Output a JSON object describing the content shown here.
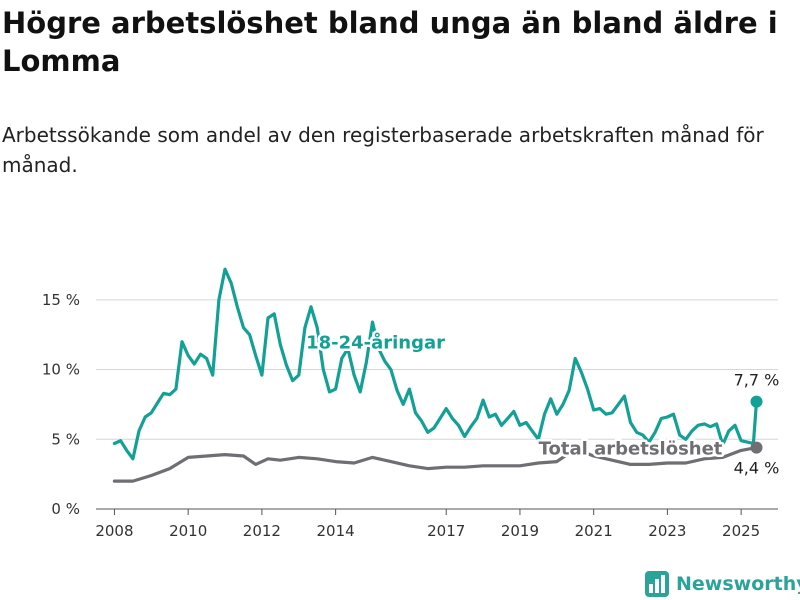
{
  "title": "Högre arbetslöshet bland unga än bland äldre i Lomma",
  "subtitle": "Arbetssökande som andel av den registerbaserade arbetskraften månad för månad.",
  "brand": {
    "name": "Newsworthy",
    "color": "#2aa39a",
    "icon": "bar-chart-logo-icon"
  },
  "chart_data": {
    "type": "line",
    "title": "Högre arbetslöshet bland unga än bland äldre i Lomma",
    "subtitle": "Arbetssökande som andel av den registerbaserade arbetskraften månad för månad.",
    "xlabel": "",
    "ylabel": "",
    "x_ticks": [
      "2008",
      "2010",
      "2012",
      "2014",
      "2017",
      "2019",
      "2021",
      "2023",
      "2025"
    ],
    "y_ticks": [
      "0 %",
      "5 %",
      "10 %",
      "15 %"
    ],
    "ylim": [
      0,
      18
    ],
    "xlim": [
      "2007-07",
      "2026-01"
    ],
    "grid": true,
    "series": [
      {
        "name": "18-24-åringar",
        "color": "#13a096",
        "end_label": "7,7 %",
        "points": [
          [
            "2008-01",
            4.7
          ],
          [
            "2008-03",
            4.9
          ],
          [
            "2008-05",
            4.2
          ],
          [
            "2008-07",
            3.6
          ],
          [
            "2008-09",
            5.6
          ],
          [
            "2008-11",
            6.6
          ],
          [
            "2009-01",
            6.9
          ],
          [
            "2009-03",
            7.6
          ],
          [
            "2009-05",
            8.3
          ],
          [
            "2009-07",
            8.2
          ],
          [
            "2009-09",
            8.6
          ],
          [
            "2009-11",
            12.0
          ],
          [
            "2010-01",
            11.0
          ],
          [
            "2010-03",
            10.4
          ],
          [
            "2010-05",
            11.1
          ],
          [
            "2010-07",
            10.8
          ],
          [
            "2010-09",
            9.6
          ],
          [
            "2010-11",
            15.0
          ],
          [
            "2011-01",
            17.2
          ],
          [
            "2011-03",
            16.2
          ],
          [
            "2011-05",
            14.5
          ],
          [
            "2011-07",
            13.0
          ],
          [
            "2011-09",
            12.5
          ],
          [
            "2011-11",
            11.0
          ],
          [
            "2012-01",
            9.6
          ],
          [
            "2012-03",
            13.7
          ],
          [
            "2012-05",
            14.0
          ],
          [
            "2012-07",
            11.8
          ],
          [
            "2012-09",
            10.3
          ],
          [
            "2012-11",
            9.2
          ],
          [
            "2013-01",
            9.6
          ],
          [
            "2013-03",
            13.0
          ],
          [
            "2013-05",
            14.5
          ],
          [
            "2013-07",
            13.0
          ],
          [
            "2013-09",
            10.0
          ],
          [
            "2013-11",
            8.4
          ],
          [
            "2014-01",
            8.6
          ],
          [
            "2014-03",
            10.8
          ],
          [
            "2014-05",
            11.5
          ],
          [
            "2014-07",
            9.6
          ],
          [
            "2014-09",
            8.4
          ],
          [
            "2014-11",
            10.5
          ],
          [
            "2015-01",
            13.4
          ],
          [
            "2015-03",
            11.5
          ],
          [
            "2015-05",
            10.6
          ],
          [
            "2015-07",
            10.0
          ],
          [
            "2015-09",
            8.5
          ],
          [
            "2015-11",
            7.5
          ],
          [
            "2016-01",
            8.6
          ],
          [
            "2016-03",
            6.9
          ],
          [
            "2016-05",
            6.3
          ],
          [
            "2016-07",
            5.5
          ],
          [
            "2016-09",
            5.8
          ],
          [
            "2016-11",
            6.5
          ],
          [
            "2017-01",
            7.2
          ],
          [
            "2017-03",
            6.5
          ],
          [
            "2017-05",
            6.0
          ],
          [
            "2017-07",
            5.2
          ],
          [
            "2017-09",
            5.9
          ],
          [
            "2017-11",
            6.5
          ],
          [
            "2018-01",
            7.8
          ],
          [
            "2018-03",
            6.6
          ],
          [
            "2018-05",
            6.8
          ],
          [
            "2018-07",
            6.0
          ],
          [
            "2018-09",
            6.5
          ],
          [
            "2018-11",
            7.0
          ],
          [
            "2019-01",
            6.0
          ],
          [
            "2019-03",
            6.2
          ],
          [
            "2019-05",
            5.6
          ],
          [
            "2019-07",
            5.0
          ],
          [
            "2019-09",
            6.8
          ],
          [
            "2019-11",
            7.9
          ],
          [
            "2020-01",
            6.8
          ],
          [
            "2020-03",
            7.5
          ],
          [
            "2020-05",
            8.5
          ],
          [
            "2020-07",
            10.8
          ],
          [
            "2020-09",
            9.8
          ],
          [
            "2020-11",
            8.6
          ],
          [
            "2021-01",
            7.1
          ],
          [
            "2021-03",
            7.2
          ],
          [
            "2021-05",
            6.8
          ],
          [
            "2021-07",
            6.9
          ],
          [
            "2021-09",
            7.5
          ],
          [
            "2021-11",
            8.1
          ],
          [
            "2022-01",
            6.2
          ],
          [
            "2022-03",
            5.5
          ],
          [
            "2022-05",
            5.3
          ],
          [
            "2022-07",
            4.8
          ],
          [
            "2022-09",
            5.5
          ],
          [
            "2022-11",
            6.5
          ],
          [
            "2023-01",
            6.6
          ],
          [
            "2023-03",
            6.8
          ],
          [
            "2023-05",
            5.3
          ],
          [
            "2023-07",
            5.0
          ],
          [
            "2023-09",
            5.6
          ],
          [
            "2023-11",
            6.0
          ],
          [
            "2024-01",
            6.1
          ],
          [
            "2024-03",
            5.9
          ],
          [
            "2024-05",
            6.1
          ],
          [
            "2024-07",
            4.6
          ],
          [
            "2024-09",
            5.6
          ],
          [
            "2024-11",
            6.0
          ],
          [
            "2025-01",
            4.9
          ],
          [
            "2025-03",
            4.8
          ],
          [
            "2025-05",
            4.7
          ],
          [
            "2025-06",
            7.7
          ]
        ]
      },
      {
        "name": "Total arbetslöshet",
        "color": "#6e6e73",
        "end_label": "4,4 %",
        "points": [
          [
            "2008-01",
            2.0
          ],
          [
            "2008-07",
            2.0
          ],
          [
            "2009-01",
            2.4
          ],
          [
            "2009-07",
            2.9
          ],
          [
            "2010-01",
            3.7
          ],
          [
            "2010-07",
            3.8
          ],
          [
            "2011-01",
            3.9
          ],
          [
            "2011-07",
            3.8
          ],
          [
            "2011-11",
            3.2
          ],
          [
            "2012-03",
            3.6
          ],
          [
            "2012-07",
            3.5
          ],
          [
            "2013-01",
            3.7
          ],
          [
            "2013-07",
            3.6
          ],
          [
            "2014-01",
            3.4
          ],
          [
            "2014-07",
            3.3
          ],
          [
            "2015-01",
            3.7
          ],
          [
            "2015-07",
            3.4
          ],
          [
            "2016-01",
            3.1
          ],
          [
            "2016-07",
            2.9
          ],
          [
            "2017-01",
            3.0
          ],
          [
            "2017-07",
            3.0
          ],
          [
            "2018-01",
            3.1
          ],
          [
            "2018-07",
            3.1
          ],
          [
            "2019-01",
            3.1
          ],
          [
            "2019-07",
            3.3
          ],
          [
            "2020-01",
            3.4
          ],
          [
            "2020-07",
            4.3
          ],
          [
            "2021-01",
            3.8
          ],
          [
            "2021-07",
            3.5
          ],
          [
            "2022-01",
            3.2
          ],
          [
            "2022-07",
            3.2
          ],
          [
            "2023-01",
            3.3
          ],
          [
            "2023-07",
            3.3
          ],
          [
            "2024-01",
            3.6
          ],
          [
            "2024-07",
            3.7
          ],
          [
            "2025-01",
            4.2
          ],
          [
            "2025-06",
            4.4
          ]
        ]
      }
    ],
    "series_labels": [
      {
        "series": "18-24-åringar",
        "text": "18-24-åringar",
        "at": [
          "2015-02",
          11.5
        ]
      },
      {
        "series": "Total arbetslöshet",
        "text": "Total arbetslöshet",
        "at": [
          "2022-01",
          3.9
        ]
      }
    ]
  }
}
